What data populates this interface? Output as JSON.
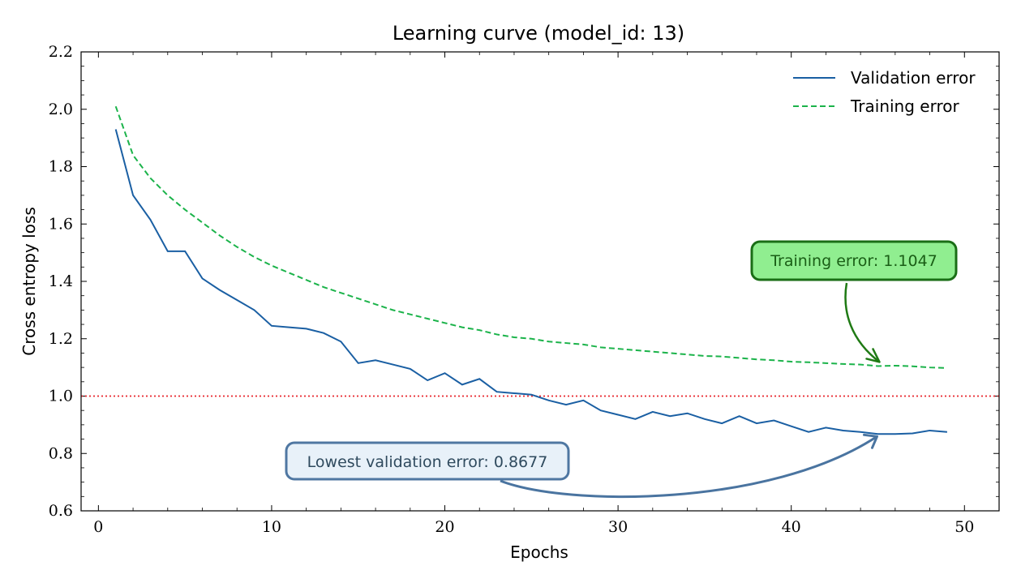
{
  "chart_data": {
    "type": "line",
    "title": "Learning curve (model_id: 13)",
    "xlabel": "Epochs",
    "ylabel": "Cross entropy loss",
    "xlim": [
      -1,
      52
    ],
    "ylim": [
      0.6,
      2.2
    ],
    "xticks": [
      0,
      10,
      20,
      30,
      40,
      50
    ],
    "yticks": [
      0.6,
      0.8,
      1.0,
      1.2,
      1.4,
      1.6,
      1.8,
      2.0,
      2.2
    ],
    "x": [
      1,
      2,
      3,
      4,
      5,
      6,
      7,
      8,
      9,
      10,
      11,
      12,
      13,
      14,
      15,
      16,
      17,
      18,
      19,
      20,
      21,
      22,
      23,
      24,
      25,
      26,
      27,
      28,
      29,
      30,
      31,
      32,
      33,
      34,
      35,
      36,
      37,
      38,
      39,
      40,
      41,
      42,
      43,
      44,
      45,
      46,
      47,
      48,
      49
    ],
    "series": [
      {
        "name": "Validation error",
        "color": "#1a5fa3",
        "dash": "solid",
        "values": [
          1.93,
          1.7,
          1.615,
          1.505,
          1.505,
          1.41,
          1.37,
          1.335,
          1.3,
          1.245,
          1.24,
          1.235,
          1.22,
          1.19,
          1.115,
          1.125,
          1.11,
          1.095,
          1.055,
          1.08,
          1.04,
          1.06,
          1.015,
          1.01,
          1.005,
          0.985,
          0.97,
          0.985,
          0.95,
          0.935,
          0.92,
          0.945,
          0.93,
          0.94,
          0.92,
          0.905,
          0.93,
          0.905,
          0.915,
          0.895,
          0.875,
          0.89,
          0.88,
          0.875,
          0.8677,
          0.868,
          0.87,
          0.88,
          0.875
        ]
      },
      {
        "name": "Training error",
        "color": "#1bb34a",
        "dash": "dashed",
        "values": [
          2.01,
          1.84,
          1.76,
          1.7,
          1.65,
          1.605,
          1.56,
          1.52,
          1.485,
          1.455,
          1.43,
          1.405,
          1.38,
          1.36,
          1.34,
          1.32,
          1.3,
          1.285,
          1.27,
          1.255,
          1.24,
          1.23,
          1.215,
          1.205,
          1.2,
          1.19,
          1.185,
          1.18,
          1.17,
          1.165,
          1.16,
          1.155,
          1.15,
          1.145,
          1.14,
          1.138,
          1.133,
          1.128,
          1.125,
          1.12,
          1.118,
          1.115,
          1.112,
          1.11,
          1.1047,
          1.106,
          1.104,
          1.1,
          1.098
        ]
      }
    ],
    "reference_line": {
      "y": 1.0,
      "color": "#e8242b",
      "style": "dotted"
    },
    "legend": {
      "position": "top-right",
      "entries": [
        "Validation error",
        "Training error"
      ]
    },
    "annotations": [
      {
        "text": "Training error: 1.1047",
        "x": 45,
        "y": 1.1047,
        "box_fill": "#90ee90",
        "box_edge": "#1a6e16",
        "text_color": "#1a5e16"
      },
      {
        "text": "Lowest validation error: 0.8677",
        "x": 45,
        "y": 0.8677,
        "box_fill": "#e8f1f9",
        "box_edge": "#4f77a2",
        "text_color": "#2f4a5e"
      }
    ],
    "grid": false
  }
}
